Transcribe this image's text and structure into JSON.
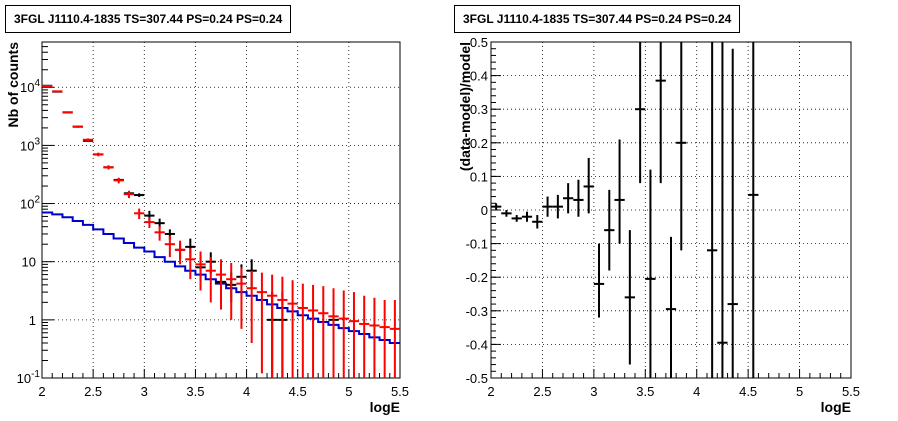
{
  "chart_data": [
    {
      "type": "scatter",
      "title": "3FGL J1110.4-1835 TS=307.44 PS=0.24 PS=0.24",
      "xlabel": "logE",
      "ylabel": "Nb of counts",
      "xlim": [
        2,
        5.5
      ],
      "ylim": [
        0.1,
        60000
      ],
      "ylog": true,
      "grid": true,
      "xticks": [
        "2",
        "2.5",
        "3",
        "3.5",
        "4",
        "4.5",
        "5",
        "5.5"
      ],
      "yticks": [
        {
          "value": 0.1,
          "label": "10",
          "exp": "-1"
        },
        {
          "value": 1,
          "label": "1",
          "exp": ""
        },
        {
          "value": 10,
          "label": "10",
          "exp": ""
        },
        {
          "value": 100,
          "label": "10",
          "exp": "2"
        },
        {
          "value": 1000,
          "label": "10",
          "exp": "3"
        },
        {
          "value": 10000,
          "label": "10",
          "exp": "4"
        }
      ],
      "series": [
        {
          "color": "#ff0000",
          "x": [
            2.05,
            2.15,
            2.25,
            2.35,
            2.45,
            2.55,
            2.65,
            2.75,
            2.85,
            2.95,
            3.05,
            3.15,
            3.25,
            3.35,
            3.45,
            3.55,
            3.65,
            3.75,
            3.85,
            3.95,
            4.05,
            4.15,
            4.25,
            4.35,
            4.45,
            4.55,
            4.65,
            4.75,
            4.85,
            4.95,
            5.05,
            5.15,
            5.25,
            5.35,
            5.45
          ],
          "y": [
            10500,
            8500,
            3700,
            2100,
            1250,
            700,
            420,
            250,
            145,
            68,
            48,
            32,
            20,
            16,
            11,
            9,
            7,
            6,
            5,
            4.2,
            3.5,
            3,
            2.6,
            2.2,
            1.9,
            1.6,
            1.45,
            1.3,
            1.15,
            1.05,
            0.95,
            0.85,
            0.8,
            0.75,
            0.7
          ],
          "ylo": [
            10200,
            8250,
            3580,
            2010,
            1180,
            650,
            385,
            222,
            124,
            54,
            38,
            23,
            12,
            9,
            5,
            3.2,
            2,
            1.5,
            1,
            0.7,
            0.4,
            0.12,
            0.1,
            0.1,
            0.1,
            0.1,
            0.1,
            0.1,
            0.1,
            0.1,
            0.1,
            0.1,
            0.1,
            0.1,
            0.1
          ],
          "yhi": [
            10800,
            8750,
            3820,
            2190,
            1320,
            750,
            455,
            278,
            166,
            82,
            58,
            41,
            28,
            23,
            17,
            15,
            12,
            11,
            9.5,
            8,
            7,
            6.5,
            6,
            5.5,
            4.8,
            4.2,
            4,
            3.8,
            3.5,
            3.2,
            3,
            2.6,
            2.4,
            2.2,
            2.2
          ]
        },
        {
          "color": "#000000",
          "x": [
            2.05,
            2.15,
            2.25,
            2.35,
            2.45,
            2.55,
            2.65,
            2.75,
            2.85,
            2.95,
            3.05,
            3.15,
            3.25,
            3.35,
            3.45,
            3.55,
            3.65,
            3.75,
            3.85,
            3.95,
            4.05,
            4.25,
            4.35,
            4.85
          ],
          "y": [
            10600,
            8400,
            3700,
            2100,
            1200,
            700,
            420,
            255,
            150,
            140,
            62,
            46,
            30,
            16,
            18,
            8,
            10,
            4.5,
            4,
            5.5,
            7,
            1,
            1,
            1
          ],
          "ylo": [
            10500,
            8300,
            3640,
            2060,
            1160,
            670,
            400,
            240,
            140,
            130,
            50,
            38,
            24,
            11,
            12,
            4.5,
            6.2,
            2.2,
            2,
            2.6,
            3.4,
            0.1,
            0.1,
            0.38
          ],
          "yhi": [
            10700,
            8500,
            3760,
            2140,
            1240,
            730,
            440,
            270,
            160,
            150,
            75,
            55,
            36,
            21,
            25,
            12,
            14.5,
            7.5,
            6.5,
            9,
            11,
            3,
            3,
            1.7
          ]
        },
        {
          "color": "#0000cc",
          "step": [
            70,
            65,
            58,
            50,
            43,
            36,
            30,
            25,
            21,
            17.5,
            15,
            12,
            10,
            8.3,
            7,
            6,
            5,
            4.2,
            3.5,
            3,
            2.6,
            2.2,
            1.85,
            1.6,
            1.4,
            1.2,
            1.05,
            0.92,
            0.82,
            0.72,
            0.64,
            0.57,
            0.5,
            0.45,
            0.4
          ]
        }
      ]
    },
    {
      "type": "scatter",
      "title": "3FGL J1110.4-1835 TS=307.44 PS=0.24 PS=0.24",
      "xlabel": "logE",
      "ylabel": "(data-model)/model",
      "xlim": [
        2,
        5.5
      ],
      "ylim": [
        -0.5,
        0.5
      ],
      "grid": true,
      "xticks": [
        "2",
        "2.5",
        "3",
        "3.5",
        "4",
        "4.5",
        "5",
        "5.5"
      ],
      "yticks": [
        "-0.5",
        "-0.4",
        "-0.3",
        "-0.2",
        "-0.1",
        "0",
        "0.1",
        "0.2",
        "0.3",
        "0.4",
        "0.5"
      ],
      "series": [
        {
          "color": "#000000",
          "x": [
            2.05,
            2.15,
            2.25,
            2.35,
            2.45,
            2.55,
            2.65,
            2.75,
            2.85,
            2.95,
            3.05,
            3.15,
            3.25,
            3.35,
            3.45,
            3.55,
            3.65,
            3.75,
            3.85,
            4.15,
            4.25,
            4.35,
            4.55
          ],
          "y": [
            0.01,
            -0.01,
            -0.025,
            -0.02,
            -0.035,
            0.01,
            0.01,
            0.035,
            0.03,
            0.07,
            -0.22,
            -0.06,
            0.03,
            -0.26,
            0.3,
            -0.205,
            0.385,
            -0.295,
            0.2,
            -0.12,
            -0.395,
            -0.28,
            0.045
          ],
          "ylo": [
            0.0,
            -0.02,
            -0.035,
            -0.035,
            -0.055,
            -0.02,
            -0.025,
            -0.01,
            -0.02,
            -0.01,
            -0.32,
            -0.18,
            -0.1,
            -0.46,
            0.08,
            -0.5,
            0.08,
            -0.5,
            -0.12,
            -0.5,
            -0.5,
            -0.5,
            -0.5
          ],
          "yhi": [
            0.02,
            0.0,
            -0.015,
            -0.005,
            -0.015,
            0.04,
            0.045,
            0.08,
            0.09,
            0.155,
            -0.1,
            0.06,
            0.21,
            -0.06,
            0.5,
            0.12,
            0.5,
            -0.08,
            0.5,
            0.5,
            0.5,
            0.48,
            0.5
          ]
        }
      ]
    }
  ]
}
